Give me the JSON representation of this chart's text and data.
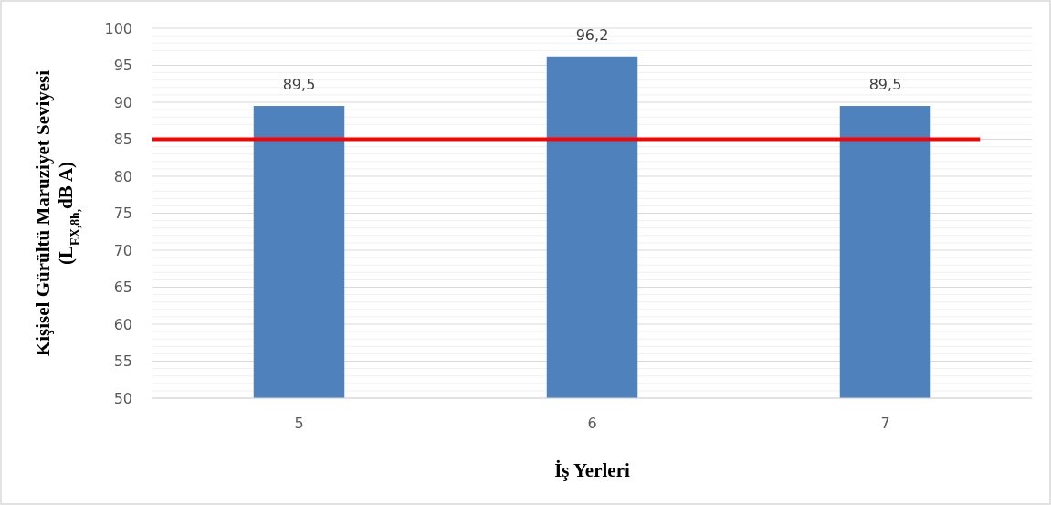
{
  "chart_data": {
    "type": "bar",
    "xlabel": "İş Yerleri",
    "ylabel": "Kişisel Gürültü Maruziyet Seviyesi\n(L$_{EX,8h,}$dB A)",
    "categories": [
      "5",
      "6",
      "7"
    ],
    "values": [
      89.5,
      96.2,
      89.5
    ],
    "value_labels": [
      "89,5",
      "96,2",
      "89,5"
    ],
    "color": "#4f81bd",
    "ylim": [
      50,
      100
    ],
    "yticks": [
      50,
      55,
      60,
      65,
      70,
      75,
      80,
      85,
      90,
      95,
      100
    ],
    "grid": "y",
    "ref_lines": [
      {
        "axis": "y",
        "value": 85,
        "color": "#ff0000"
      }
    ]
  }
}
